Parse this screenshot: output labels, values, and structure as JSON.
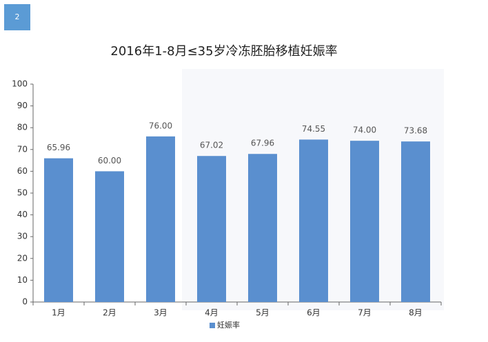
{
  "badge": "2",
  "chart_data": {
    "type": "bar",
    "title": "2016年1-8月≤35岁冷冻胚胎移植妊娠率",
    "categories": [
      "1月",
      "2月",
      "3月",
      "4月",
      "5月",
      "6月",
      "7月",
      "8月"
    ],
    "series": [
      {
        "name": "妊娠率",
        "color": "#5a8fcf",
        "values": [
          65.96,
          60.0,
          76.0,
          67.02,
          67.96,
          74.55,
          74.0,
          73.68
        ],
        "value_labels": [
          "65.96",
          "60.00",
          "76.00",
          "67.02",
          "67.96",
          "74.55",
          "74.00",
          "73.68"
        ]
      }
    ],
    "ylim": [
      0,
      100
    ],
    "yticks": [
      0,
      10,
      20,
      30,
      40,
      50,
      60,
      70,
      80,
      90,
      100
    ],
    "grid": false,
    "legend": "bottom"
  }
}
